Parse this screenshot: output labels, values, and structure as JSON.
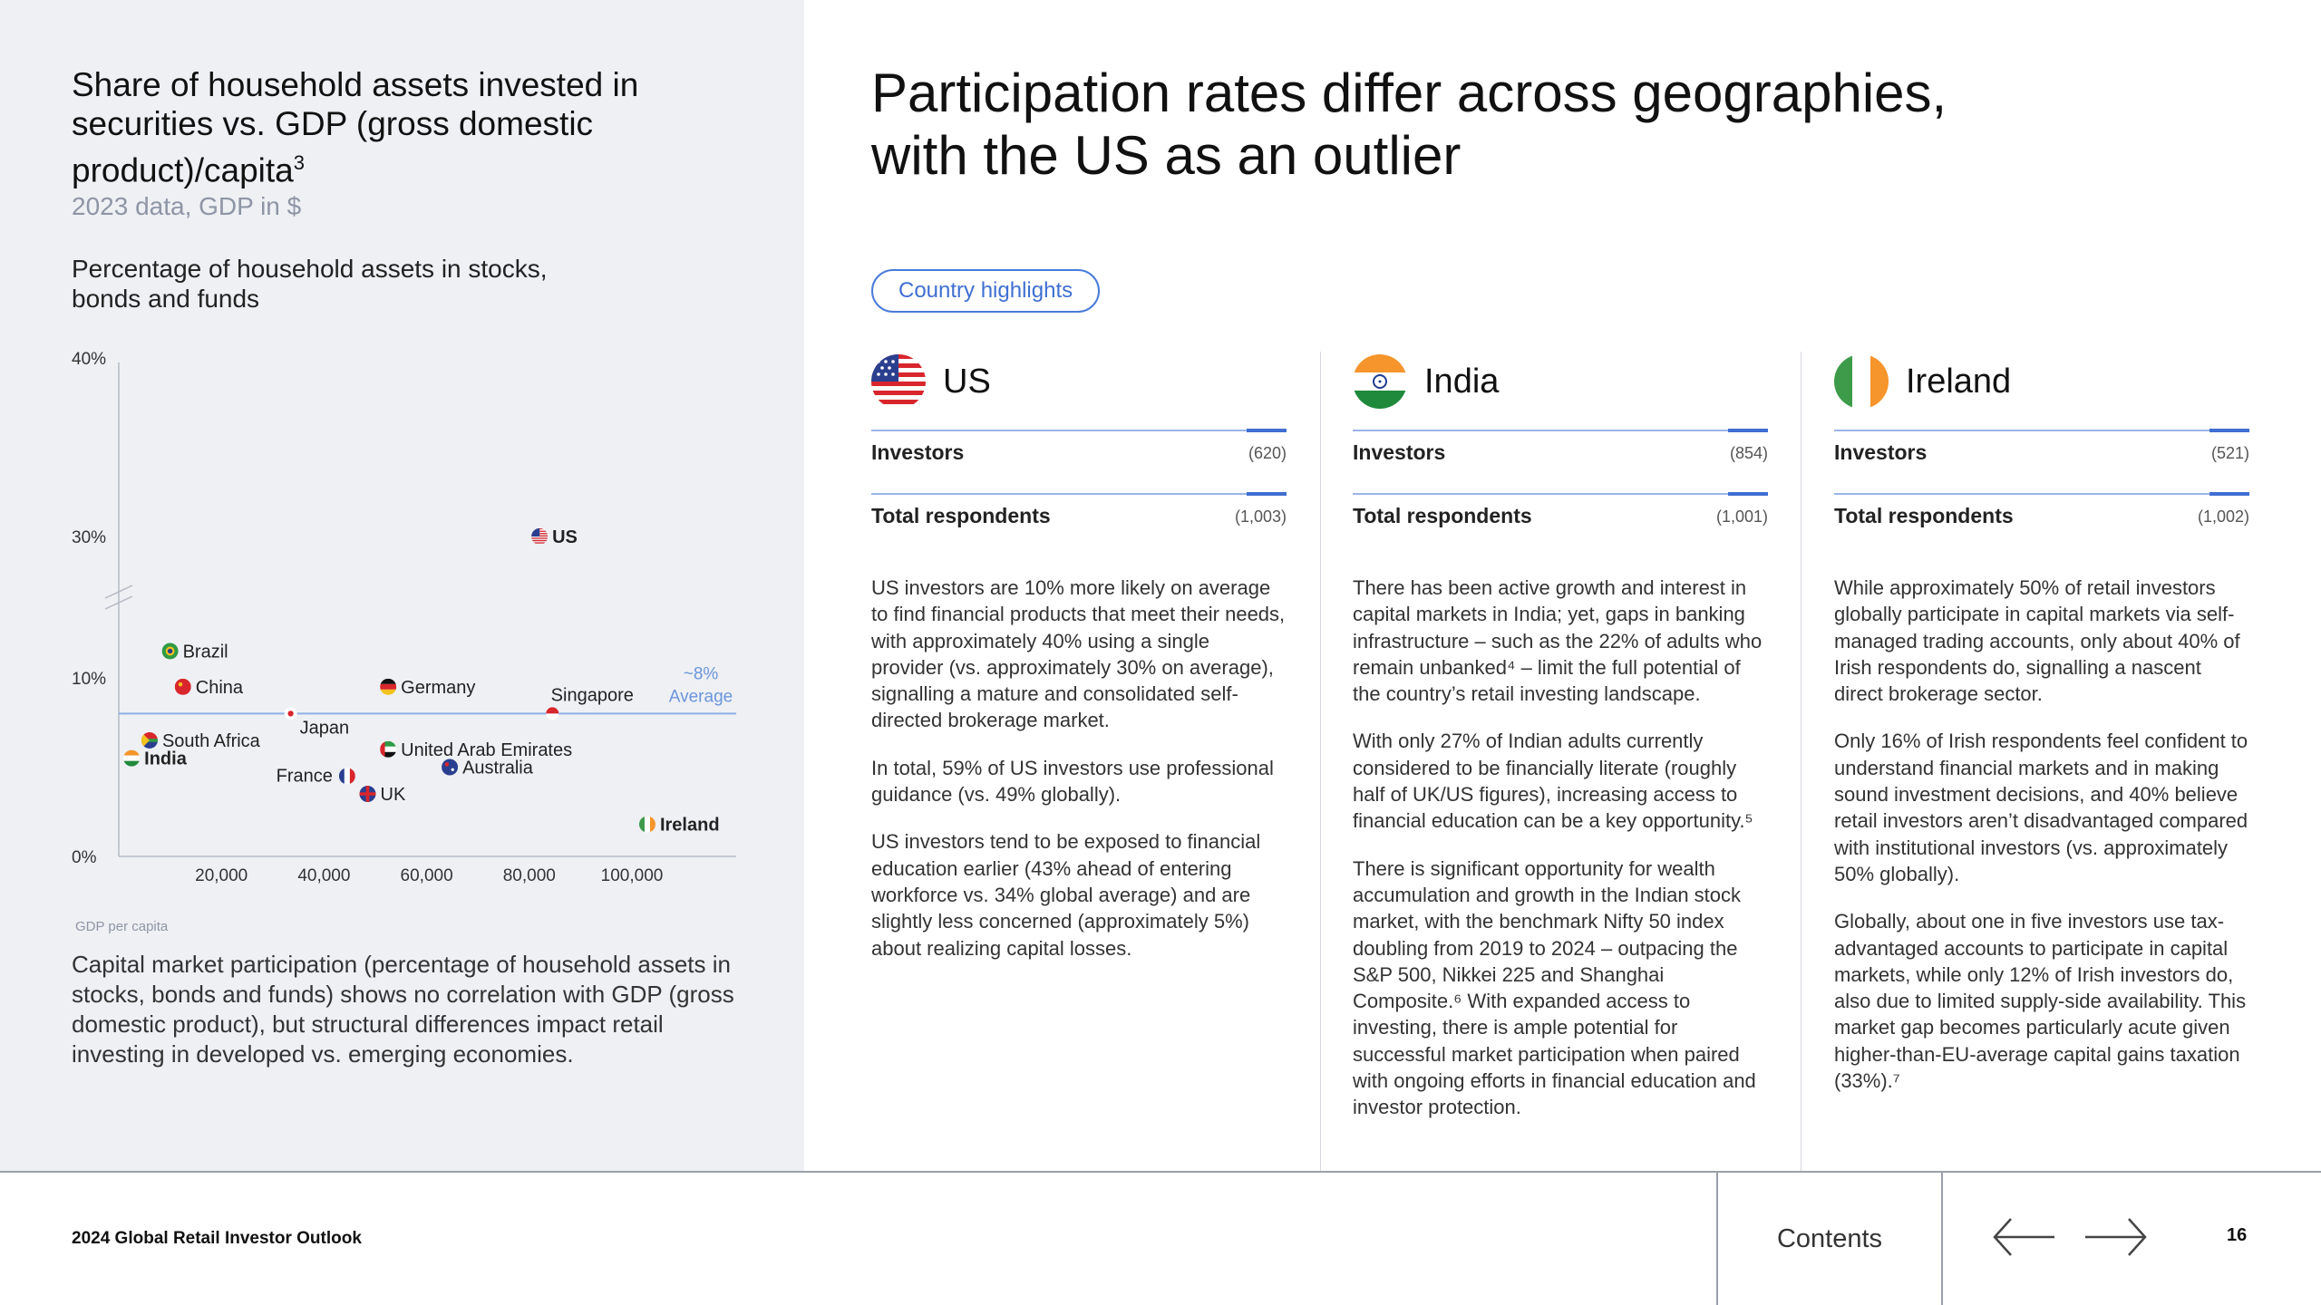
{
  "chart_panel": {
    "title": "Share of household assets invested in securities vs. GDP (gross domestic product)/capita",
    "title_superscript": "3",
    "subtitle": "2023 data, GDP in $",
    "y_axis_label": "Percentage of household assets in stocks, bonds and funds",
    "x_axis_label": "GDP per capita",
    "caption": "Capital market participation (percentage of household assets in stocks, bonds and funds) shows no correlation with GDP (gross domestic product), but structural differences impact retail investing in developed vs. emerging economies."
  },
  "chart_data": {
    "type": "scatter",
    "x_ticks": [
      "20,000",
      "40,000",
      "60,000",
      "80,000",
      "100,000"
    ],
    "y_ticks": [
      "0%",
      "10%",
      "30%",
      "40%"
    ],
    "y_axis_break": true,
    "average_line": {
      "value": 8,
      "label_top": "~8%",
      "label_bottom": "Average"
    },
    "points": [
      {
        "name": "US",
        "x": 82000,
        "y": 30,
        "bold": true,
        "flag": "us"
      },
      {
        "name": "Brazil",
        "x": 10000,
        "y": 11.5,
        "bold": false,
        "flag": "brazil"
      },
      {
        "name": "China",
        "x": 12500,
        "y": 9.5,
        "bold": false,
        "flag": "china"
      },
      {
        "name": "Germany",
        "x": 52500,
        "y": 9.5,
        "bold": false,
        "flag": "germany"
      },
      {
        "name": "Japan",
        "x": 33500,
        "y": 8,
        "bold": false,
        "flag": "japan"
      },
      {
        "name": "Singapore",
        "x": 84500,
        "y": 8,
        "bold": false,
        "flag": "singapore"
      },
      {
        "name": "South Africa",
        "x": 6000,
        "y": 6.5,
        "bold": false,
        "flag": "south-africa"
      },
      {
        "name": "India",
        "x": 2500,
        "y": 5.5,
        "bold": true,
        "flag": "india"
      },
      {
        "name": "United Arab Emirates",
        "x": 52500,
        "y": 6,
        "bold": false,
        "flag": "uae"
      },
      {
        "name": "Australia",
        "x": 64500,
        "y": 5,
        "bold": false,
        "flag": "australia"
      },
      {
        "name": "France",
        "x": 44500,
        "y": 4.5,
        "bold": false,
        "flag": "france"
      },
      {
        "name": "UK",
        "x": 48500,
        "y": 3.5,
        "bold": false,
        "flag": "uk"
      },
      {
        "name": "Ireland",
        "x": 103000,
        "y": 1.8,
        "bold": true,
        "flag": "ireland"
      }
    ]
  },
  "main": {
    "title": "Participation rates differ across geographies, with the US as an outlier",
    "pill_label": "Country highlights"
  },
  "countries": [
    {
      "name": "US",
      "investors_label": "Investors",
      "investors_value": "(620)",
      "respondents_label": "Total respondents",
      "respondents_value": "(1,003)",
      "paragraphs": [
        "US investors are 10% more likely on average to find financial products that meet their needs, with approximately 40% using a single provider (vs. approximately 30% on average), signalling a mature and consolidated self-directed brokerage market.",
        "In total, 59% of US investors use professional guidance (vs. 49% globally).",
        "US investors tend to be exposed to financial education earlier (43% ahead of entering workforce vs. 34% global average) and are slightly less concerned (approximately 5%) about realizing capital losses."
      ]
    },
    {
      "name": "India",
      "investors_label": "Investors",
      "investors_value": "(854)",
      "respondents_label": "Total respondents",
      "respondents_value": "(1,001)",
      "paragraphs": [
        "There has been active growth and interest in capital markets in India; yet, gaps in banking infrastructure – such as the 22% of adults who remain unbanked⁴ – limit the full potential of the country’s retail investing landscape.",
        "With only 27% of Indian adults currently considered to be financially literate (roughly half of UK/US figures), increasing access to financial education can be a key opportunity.⁵",
        "There is significant opportunity for wealth accumulation and growth in the Indian stock market, with the benchmark Nifty 50 index doubling from 2019 to 2024 – outpacing the S&P 500, Nikkei 225 and Shanghai Composite.⁶ With expanded access to investing, there is ample potential for successful market participation when paired with ongoing efforts in financial education and investor protection."
      ]
    },
    {
      "name": "Ireland",
      "investors_label": "Investors",
      "investors_value": "(521)",
      "respondents_label": "Total respondents",
      "respondents_value": "(1,002)",
      "paragraphs": [
        "While approximately 50% of retail investors globally participate in capital markets via self-managed trading accounts, only about 40% of Irish respondents do, signalling a nascent direct brokerage sector.",
        "Only 16% of Irish respondents feel confident to understand financial markets and in making sound investment decisions, and 40% believe retail investors aren’t disadvantaged compared with institutional investors (vs. approximately 50% globally).",
        "Globally, about one in five investors use tax-advantaged accounts to participate in capital markets, while only 12% of Irish investors do, also due to limited supply-side availability. This market gap becomes particularly acute given higher-than-EU-average capital gains taxation (33%).⁷"
      ]
    }
  ],
  "footer": {
    "report_title": "2024 Global Retail Investor Outlook",
    "contents_label": "Contents",
    "page_number": "16"
  },
  "colors": {
    "accent": "#3f6fd1",
    "panel_bg": "#eef0f4",
    "average_line": "#8fb0e6"
  }
}
